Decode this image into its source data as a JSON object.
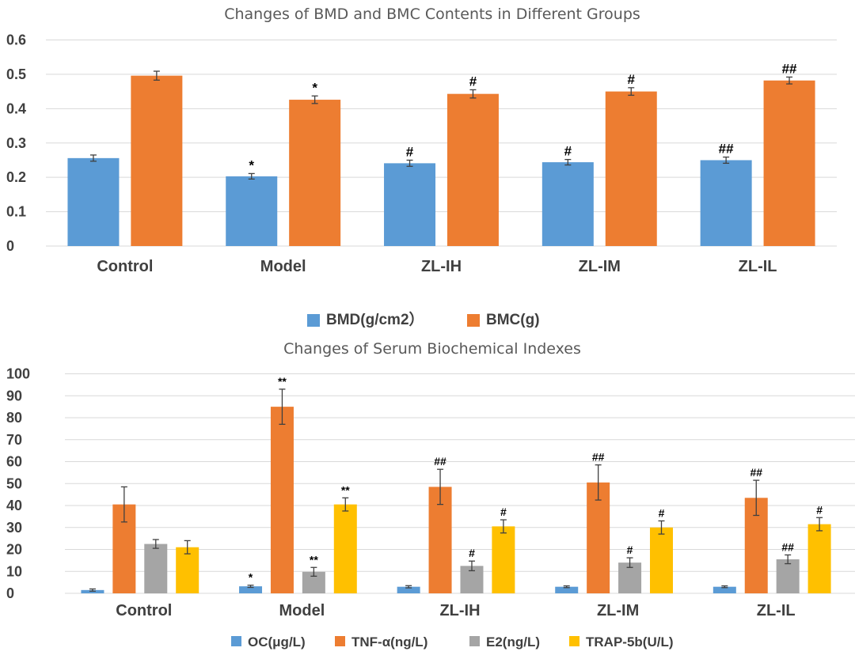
{
  "chart_data": [
    {
      "type": "bar",
      "title": "Changes of BMD and BMC Contents in Different Groups",
      "categories": [
        "Control",
        "Model",
        "ZL-IH",
        "ZL-IM",
        "ZL-IL"
      ],
      "ylim": [
        0,
        0.6
      ],
      "yticks": [
        "0",
        "0.1",
        "0.2",
        "0.3",
        "0.4",
        "0.5",
        "0.6"
      ],
      "grid": true,
      "legend_position": "bottom",
      "series": [
        {
          "name": "BMD(g/cm2）",
          "color": "#5b9bd5",
          "values": [
            0.256,
            0.203,
            0.241,
            0.244,
            0.25
          ],
          "errors": [
            0.009,
            0.008,
            0.009,
            0.008,
            0.009
          ],
          "annotations": [
            "",
            "*",
            "#",
            "#",
            "##"
          ]
        },
        {
          "name": "BMC(g)",
          "color": "#ed7d31",
          "values": [
            0.496,
            0.426,
            0.443,
            0.45,
            0.482
          ],
          "errors": [
            0.013,
            0.011,
            0.012,
            0.011,
            0.01
          ],
          "annotations": [
            "",
            "*",
            "#",
            "#",
            "##"
          ]
        }
      ]
    },
    {
      "type": "bar",
      "title": "Changes of Serum Biochemical Indexes",
      "categories": [
        "Control",
        "Model",
        "ZL-IH",
        "ZL-IM",
        "ZL-IL"
      ],
      "ylim": [
        0,
        100
      ],
      "yticks": [
        "0",
        "10",
        "20",
        "30",
        "40",
        "50",
        "60",
        "70",
        "80",
        "90",
        "100"
      ],
      "grid": true,
      "legend_position": "bottom",
      "series": [
        {
          "name": "OC(μg/L)",
          "color": "#5b9bd5",
          "values": [
            1.5,
            3.2,
            3.0,
            3.0,
            3.0
          ],
          "errors": [
            0.5,
            0.5,
            0.5,
            0.4,
            0.4
          ],
          "annotations": [
            "",
            "*",
            "",
            "",
            ""
          ]
        },
        {
          "name": "TNF-α(ng/L)",
          "color": "#ed7d31",
          "values": [
            40.5,
            85.0,
            48.5,
            50.5,
            43.5
          ],
          "errors": [
            8.0,
            8.0,
            8.0,
            8.0,
            8.0
          ],
          "annotations": [
            "",
            "**",
            "##",
            "##",
            "##"
          ]
        },
        {
          "name": "E2(ng/L)",
          "color": "#a5a5a5",
          "values": [
            22.5,
            9.8,
            12.5,
            14.0,
            15.5
          ],
          "errors": [
            2.0,
            2.0,
            2.2,
            2.2,
            2.0
          ],
          "annotations": [
            "",
            "**",
            "#",
            "#",
            "##"
          ]
        },
        {
          "name": "TRAP-5b(U/L)",
          "color": "#ffc000",
          "values": [
            21.0,
            40.5,
            30.5,
            30.0,
            31.5
          ],
          "errors": [
            3.0,
            3.0,
            3.0,
            3.0,
            3.0
          ],
          "annotations": [
            "",
            "**",
            "#",
            "#",
            "#"
          ]
        }
      ]
    }
  ]
}
